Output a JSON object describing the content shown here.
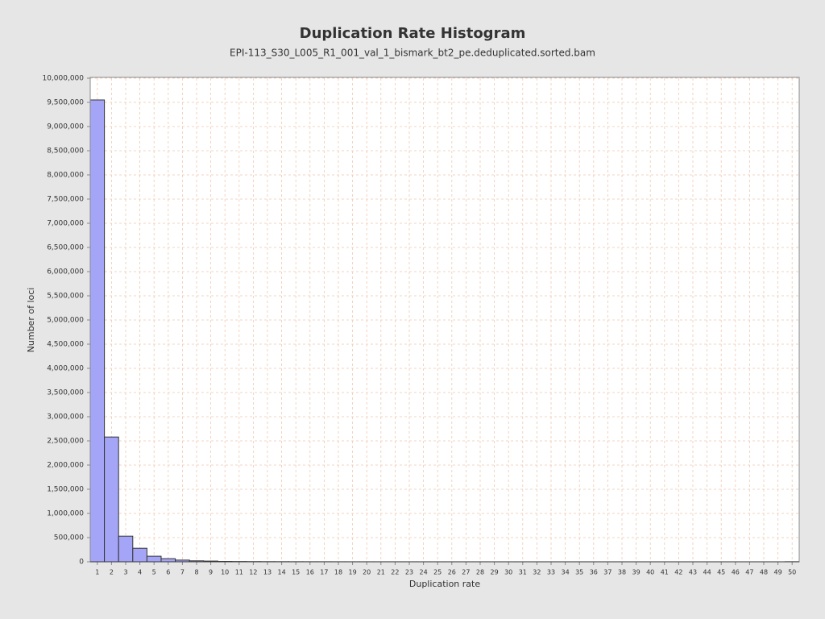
{
  "chart_data": {
    "type": "bar",
    "title": "Duplication Rate Histogram",
    "subtitle": "EPI-113_S30_L005_R1_001_val_1_bismark_bt2_pe.deduplicated.sorted.bam",
    "x_label": "Duplication rate",
    "y_label": "Number of loci",
    "categories": [
      "1",
      "2",
      "3",
      "4",
      "5",
      "6",
      "7",
      "8",
      "9",
      "10",
      "11",
      "12",
      "13",
      "14",
      "15",
      "16",
      "17",
      "18",
      "19",
      "20",
      "21",
      "22",
      "23",
      "24",
      "25",
      "26",
      "27",
      "28",
      "29",
      "30",
      "31",
      "32",
      "33",
      "34",
      "35",
      "36",
      "37",
      "38",
      "39",
      "40",
      "41",
      "42",
      "43",
      "44",
      "45",
      "46",
      "47",
      "48",
      "49",
      "50"
    ],
    "values": [
      9550000,
      2580000,
      530000,
      280000,
      115000,
      65000,
      35000,
      20000,
      15000,
      8000,
      6000,
      4500,
      3500,
      2800,
      2200,
      1800,
      1500,
      1200,
      1000,
      900,
      800,
      700,
      600,
      550,
      500,
      450,
      400,
      350,
      320,
      300,
      280,
      260,
      240,
      220,
      200,
      190,
      180,
      170,
      160,
      150,
      140,
      130,
      120,
      110,
      100,
      95,
      90,
      85,
      80,
      2000
    ],
    "color": "#a5a5f7",
    "ylim": [
      0,
      10000000
    ],
    "yticks": [
      {
        "value": 0,
        "label": "0"
      },
      {
        "value": 500000,
        "label": "500,000"
      },
      {
        "value": 1000000,
        "label": "1,000,000"
      },
      {
        "value": 1500000,
        "label": "1,500,000"
      },
      {
        "value": 2000000,
        "label": "2,000,000"
      },
      {
        "value": 2500000,
        "label": "2,500,000"
      },
      {
        "value": 3000000,
        "label": "3,000,000"
      },
      {
        "value": 3500000,
        "label": "3,500,000"
      },
      {
        "value": 4000000,
        "label": "4,000,000"
      },
      {
        "value": 4500000,
        "label": "4,500,000"
      },
      {
        "value": 5000000,
        "label": "5,000,000"
      },
      {
        "value": 5500000,
        "label": "5,500,000"
      },
      {
        "value": 6000000,
        "label": "6,000,000"
      },
      {
        "value": 6500000,
        "label": "6,500,000"
      },
      {
        "value": 7000000,
        "label": "7,000,000"
      },
      {
        "value": 7500000,
        "label": "7,500,000"
      },
      {
        "value": 8000000,
        "label": "8,000,000"
      },
      {
        "value": 8500000,
        "label": "8,500,000"
      },
      {
        "value": 9000000,
        "label": "9,000,000"
      },
      {
        "value": 9500000,
        "label": "9,500,000"
      },
      {
        "value": 10000000,
        "label": "10,000,000"
      }
    ],
    "grid": true
  }
}
